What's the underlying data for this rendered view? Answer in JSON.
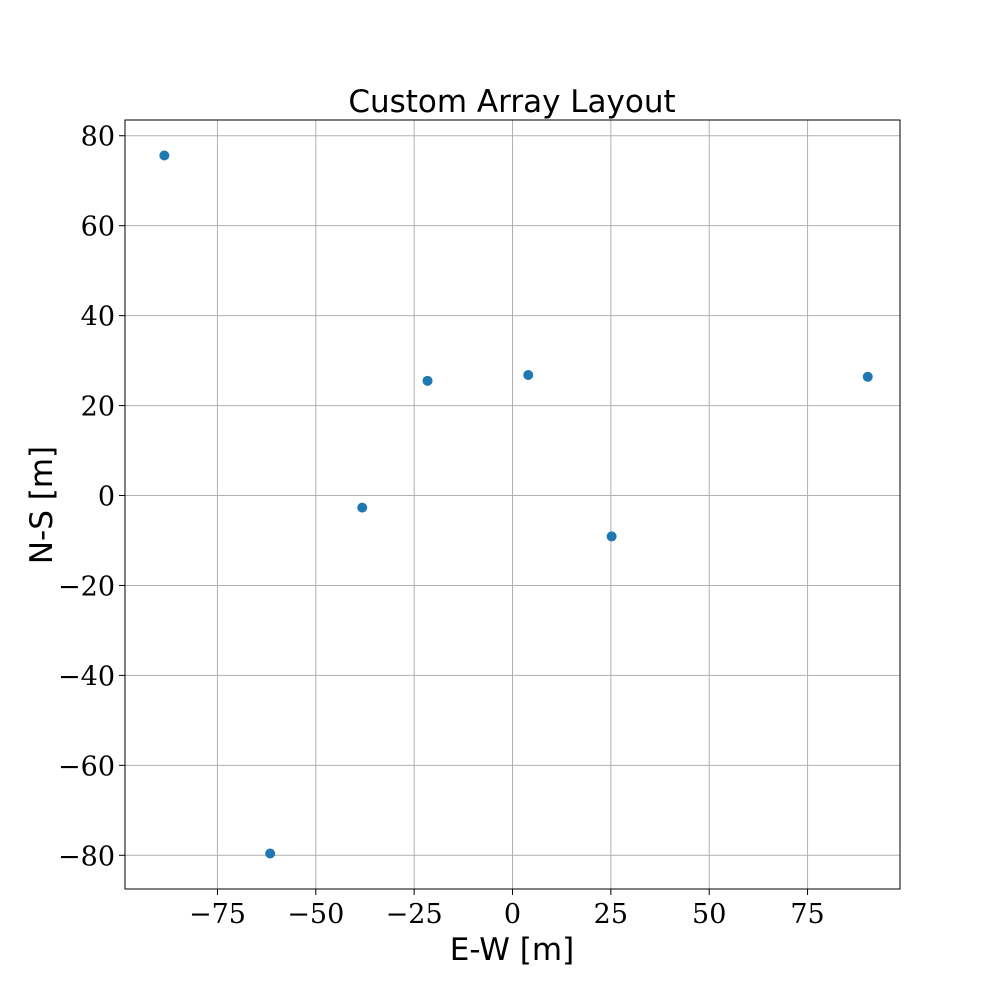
{
  "chart_data": {
    "type": "scatter",
    "title": "Custom Array Layout",
    "xlabel": "E-W [m]",
    "ylabel": "N-S [m]",
    "xlim": [
      -98.5,
      98.5
    ],
    "ylim": [
      -87.5,
      83.5
    ],
    "xticks": [
      -75,
      -50,
      -25,
      0,
      25,
      50,
      75
    ],
    "yticks": [
      -80,
      -60,
      -40,
      -20,
      0,
      20,
      40,
      60,
      80
    ],
    "xtick_labels": [
      "−75",
      "−50",
      "−25",
      "0",
      "25",
      "50",
      "75"
    ],
    "ytick_labels": [
      "−80",
      "−60",
      "−40",
      "−20",
      "0",
      "20",
      "40",
      "60",
      "80"
    ],
    "grid": true,
    "color": "#1f77b4",
    "points": [
      {
        "x": -88.5,
        "y": 75.6
      },
      {
        "x": -61.6,
        "y": -79.6
      },
      {
        "x": -38.2,
        "y": -2.7
      },
      {
        "x": -21.6,
        "y": 25.5
      },
      {
        "x": 4.0,
        "y": 26.8
      },
      {
        "x": 25.2,
        "y": -9.1
      },
      {
        "x": 90.3,
        "y": 26.4
      }
    ]
  }
}
